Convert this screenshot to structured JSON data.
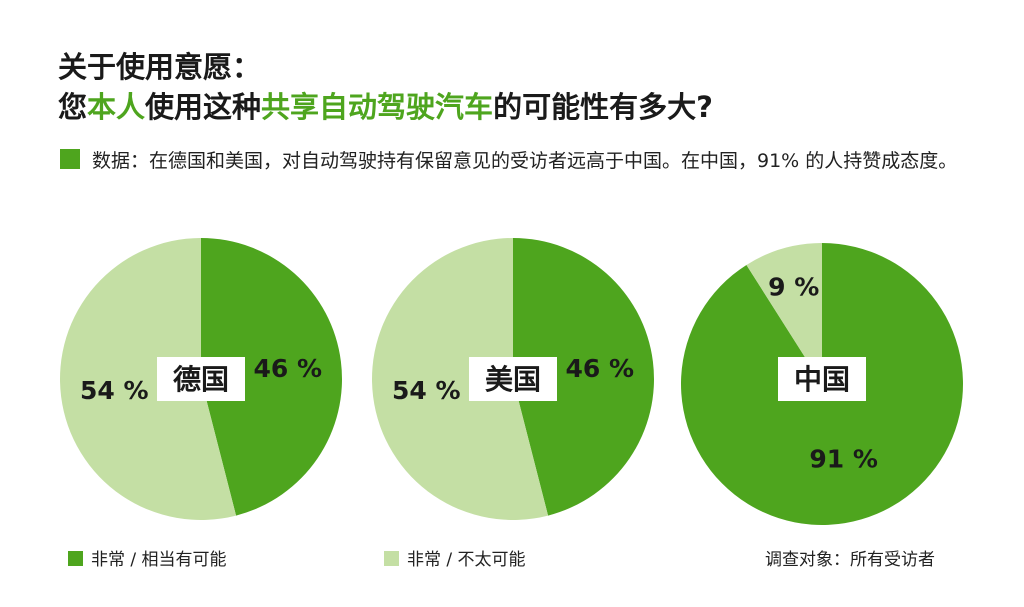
{
  "title": {
    "line1": "关于使用意愿：",
    "line2": [
      {
        "text": "您",
        "highlight": false
      },
      {
        "text": "本人",
        "highlight": true
      },
      {
        "text": "使用这种",
        "highlight": false
      },
      {
        "text": "共享自动驾驶汽车",
        "highlight": true
      },
      {
        "text": "的可能性有多大?",
        "highlight": false
      }
    ]
  },
  "description": "数据：在德国和美国，对自动驾驶持有保留意见的受访者远高于中国。在中国，91% 的人持赞成态度。",
  "colors": {
    "dark_green": "#4ea51e",
    "light_green": "#c4dfa4",
    "accent": "#4ea51e"
  },
  "chart_data": [
    {
      "type": "pie",
      "label": "德国",
      "slices": [
        {
          "name": "非常 / 相当有可能",
          "value": 46,
          "label": "46 %"
        },
        {
          "name": "非常 / 不太可能",
          "value": 54,
          "label": "54 %"
        }
      ]
    },
    {
      "type": "pie",
      "label": "美国",
      "slices": [
        {
          "name": "非常 / 相当有可能",
          "value": 46,
          "label": "46 %"
        },
        {
          "name": "非常 / 不太可能",
          "value": 54,
          "label": "54 %"
        }
      ]
    },
    {
      "type": "pie",
      "label": "中国",
      "slices": [
        {
          "name": "非常 / 相当有可能",
          "value": 91,
          "label": "91 %"
        },
        {
          "name": "非常 / 不太可能",
          "value": 9,
          "label": "9 %"
        }
      ]
    }
  ],
  "legend": [
    {
      "label": "非常 / 相当有可能",
      "color": "#4ea51e"
    },
    {
      "label": "非常 / 不太可能",
      "color": "#c4dfa4"
    }
  ],
  "note": "调查对象：所有受访者"
}
